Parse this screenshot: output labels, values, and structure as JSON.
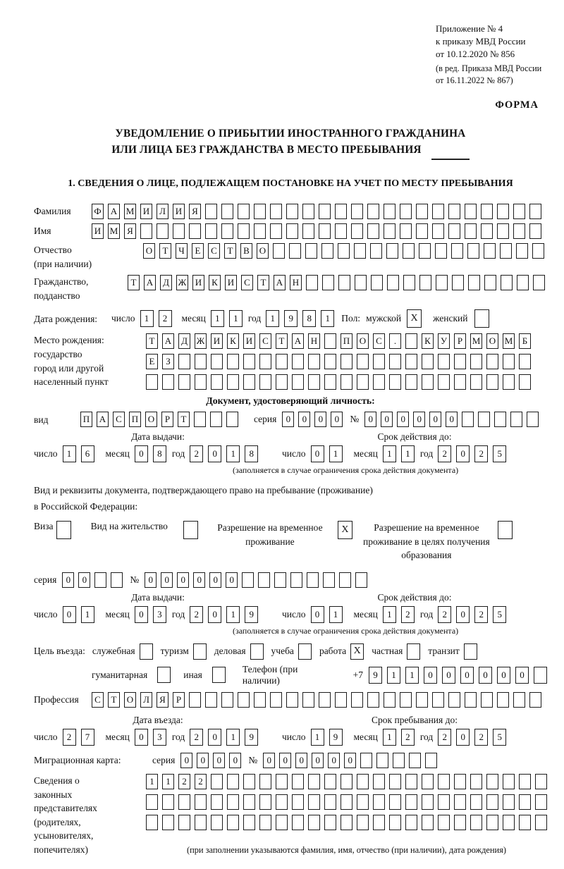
{
  "header": {
    "ref_lines": [
      "Приложение № 4",
      "к приказу МВД России",
      "от 10.12.2020 № 856"
    ],
    "ref_lines_small": [
      "(в ред. Приказа МВД России",
      "от 16.11.2022 № 867)"
    ],
    "forma": "ФОРМА"
  },
  "title": {
    "line1": "УВЕДОМЛЕНИЕ О ПРИБЫТИИ ИНОСТРАННОГО ГРАЖДАНИНА",
    "line2": "ИЛИ ЛИЦА БЕЗ ГРАЖДАНСТВА В МЕСТО ПРЕБЫВАНИЯ"
  },
  "section1_heading": "1. СВЕДЕНИЯ О ЛИЦЕ, ПОДЛЕЖАЩЕМ ПОСТАНОВКЕ НА УЧЕТ ПО МЕСТУ ПРЕБЫВАНИЯ",
  "date_labels": {
    "day": "число",
    "month": "месяц",
    "year": "год"
  },
  "fields": {
    "surname": {
      "label": "Фамилия",
      "value": "ФАМИЛИЯ",
      "count": 28
    },
    "firstname": {
      "label": "Имя",
      "value": "ИМЯ",
      "count": 28
    },
    "patronymic": {
      "label_line1": "Отчество",
      "label_line2": "(при наличии)",
      "value": "ОТЧЕСТВО",
      "count": 25
    },
    "citizenship": {
      "label_line1": "Гражданство,",
      "label_line2": "подданство",
      "value": "ТАДЖИКИСТАН",
      "count": 26
    },
    "birthdate": {
      "label": "Дата рождения:",
      "day": "12",
      "month": "11",
      "year": "1981",
      "gender_label": "Пол:",
      "male_label": "мужской",
      "male_checked": "X",
      "female_label": "женский",
      "female_checked": ""
    },
    "birthplace": {
      "label_lines": [
        "Место рождения:",
        "государство",
        "город или другой",
        "населенный пункт"
      ],
      "row1": {
        "value": "ТАДЖИКИСТАН ПОС. КУРМОМБ",
        "count": 24
      },
      "row2": {
        "value": "ЕЗ",
        "count": 24
      },
      "row3": {
        "value": "",
        "count": 24
      }
    },
    "identity_doc": {
      "heading": "Документ, удостоверяющий личность:",
      "type_label": "вид",
      "type": {
        "value": "ПАСПОРТ",
        "count": 10
      },
      "series_label": "серия",
      "series": {
        "value": "0000",
        "count": 4
      },
      "number_label": "№",
      "number": {
        "value": "000000",
        "count": 11
      },
      "issue_heading": "Дата выдачи:",
      "issue": {
        "day": "16",
        "month": "08",
        "year": "2018"
      },
      "expiry_heading": "Срок действия до:",
      "expiry": {
        "day": "01",
        "month": "11",
        "year": "2025"
      },
      "expiry_note": "(заполняется в случае ограничения срока действия документа)"
    },
    "residence_doc": {
      "intro_line1": "Вид и реквизиты документа, подтверждающего право на пребывание (проживание)",
      "intro_line2": "в Российской Федерации:",
      "visa_label": "Виза",
      "visa_checked": "",
      "residence_permit_label": "Вид на жительство",
      "residence_permit_checked": "",
      "temp_residence_label": "Разрешение на временное проживание",
      "temp_residence_checked": "X",
      "temp_residence_edu_label": "Разрешение на временное проживание в целях получения образования",
      "temp_residence_edu_checked": "",
      "series_label": "серия",
      "series": {
        "value": "00",
        "count": 4
      },
      "number_label": "№",
      "number": {
        "value": "000000",
        "count": 14
      },
      "issue_heading": "Дата выдачи:",
      "issue": {
        "day": "01",
        "month": "03",
        "year": "2019"
      },
      "expiry_heading": "Срок действия до:",
      "expiry": {
        "day": "01",
        "month": "12",
        "year": "2025"
      },
      "expiry_note": "(заполняется в случае ограничения срока действия документа)"
    },
    "visit_purpose": {
      "label": "Цель въезда:",
      "options": [
        {
          "label": "служебная",
          "checked": ""
        },
        {
          "label": "туризм",
          "checked": ""
        },
        {
          "label": "деловая",
          "checked": ""
        },
        {
          "label": "учеба",
          "checked": ""
        },
        {
          "label": "работа",
          "checked": "X"
        },
        {
          "label": "частная",
          "checked": ""
        },
        {
          "label": "транзит",
          "checked": ""
        },
        {
          "label": "гуманитарная",
          "checked": ""
        },
        {
          "label": "иная",
          "checked": ""
        }
      ]
    },
    "phone": {
      "label": "Телефон (при наличии)",
      "prefix": "+7",
      "value": "911000000",
      "count": 10
    },
    "profession": {
      "label": "Профессия",
      "value": "СТОЛЯР",
      "count": 28
    },
    "entry_date": {
      "heading": "Дата въезда:",
      "day": "27",
      "month": "03",
      "year": "2019"
    },
    "stay_until": {
      "heading": "Срок пребывания до:",
      "day": "19",
      "month": "12",
      "year": "2025"
    },
    "migration_card": {
      "label": "Миграционная карта:",
      "series_label": "серия",
      "series": {
        "value": "0000",
        "count": 4
      },
      "number_label": "№",
      "number": {
        "value": "000000",
        "count": 11
      }
    },
    "legal_reps": {
      "label_lines": [
        "Сведения о",
        "законных",
        "представителях",
        "(родителях,",
        "усыновителях,",
        "попечителях)"
      ],
      "row1": {
        "value": "1122",
        "count": 25
      },
      "row2": {
        "value": "",
        "count": 25
      },
      "row3": {
        "value": "",
        "count": 25
      },
      "note": "(при заполнении указываются фамилия, имя, отчество (при наличии), дата рождения)"
    }
  }
}
